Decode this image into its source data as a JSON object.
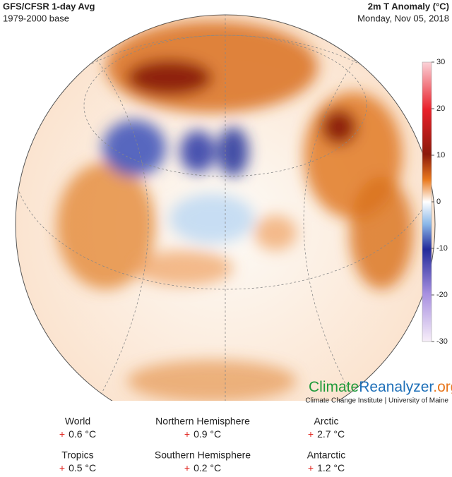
{
  "header": {
    "title": "GFS/CFSR 1-day Avg",
    "subtitle": "1979-2000 base",
    "variable": "2m T Anomaly (°C)",
    "date": "Monday, Nov 05, 2018"
  },
  "colorbar": {
    "ticks": [
      30,
      20,
      10,
      0,
      -10,
      -20,
      -30
    ],
    "range": [
      -30,
      30
    ]
  },
  "branding": {
    "climate": "Climate",
    "reanalyzer": "Reanalyzer",
    "org": ".org",
    "credit": "Climate Change Institute | University of Maine"
  },
  "stats": [
    {
      "region": "World",
      "sign": "+",
      "value": "0.6 °C"
    },
    {
      "region": "Northern Hemisphere",
      "sign": "+",
      "value": "0.9 °C"
    },
    {
      "region": "Arctic",
      "sign": "+",
      "value": "2.7 °C"
    },
    {
      "region": "Tropics",
      "sign": "+",
      "value": "0.5 °C"
    },
    {
      "region": "Southern Hemisphere",
      "sign": "+",
      "value": "0.2 °C"
    },
    {
      "region": "Antarctic",
      "sign": "+",
      "value": "1.2 °C"
    }
  ]
}
